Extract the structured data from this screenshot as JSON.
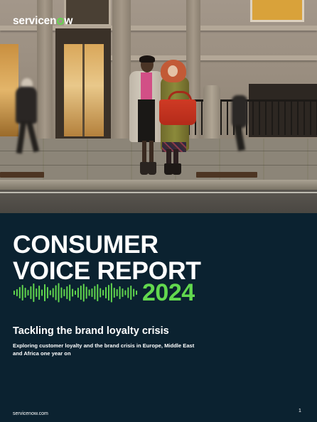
{
  "brand": {
    "logo_prefix": "servicen",
    "logo_suffix": "w",
    "accent_color": "#62d84e",
    "background_color": "#0b2230"
  },
  "cover": {
    "title_line1": "CONSUMER",
    "title_line2": "VOICE REPORT",
    "year": "2024",
    "subtitle": "Tackling the brand loyalty crisis",
    "description": "Exploring customer loyalty and the brand crisis in Europe, Middle East and Africa one year on",
    "photo_icon": "street-scene-photo",
    "wave_icon": "audio-waveform-icon"
  },
  "footer": {
    "url": "servicenow.com",
    "page_number": "1"
  }
}
